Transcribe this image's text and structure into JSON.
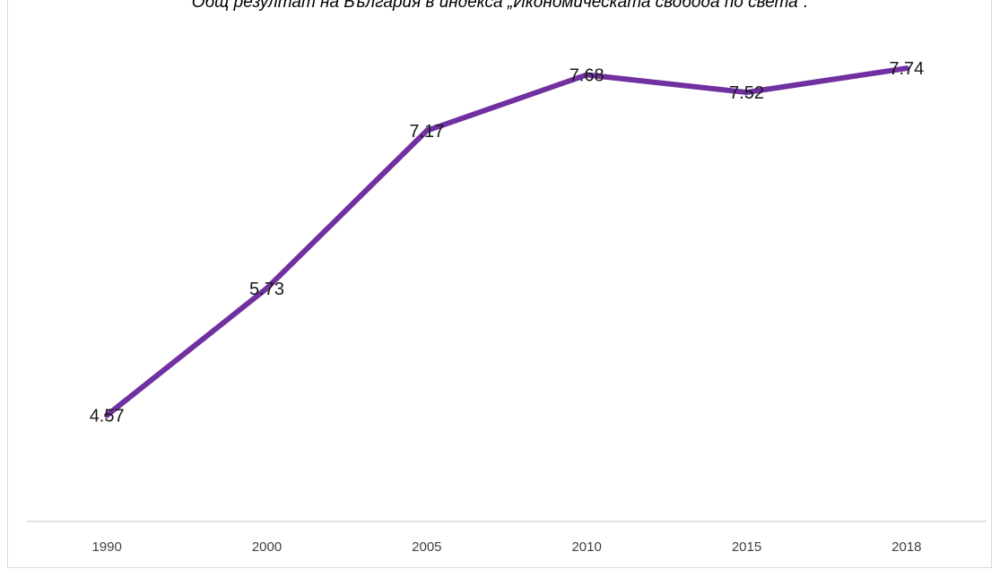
{
  "chart_data": {
    "type": "line",
    "title": "Общ резултат на България в индекса „Икономическата свобода по света“.",
    "xlabel": "",
    "ylabel": "",
    "categories": [
      "1990",
      "2000",
      "2005",
      "2010",
      "2015",
      "2018"
    ],
    "series": [
      {
        "values": [
          4.57,
          5.73,
          7.17,
          7.68,
          7.52,
          7.74
        ],
        "labels": [
          "4.57",
          "5.73",
          "7.17",
          "7.68",
          "7.52",
          "7.74"
        ],
        "color": "#7030a0"
      }
    ],
    "ylim": [
      3.6,
      8.2
    ],
    "grid": false,
    "legend": "none",
    "colors": {
      "line": "#7030a0",
      "axis": "#d9d9d9",
      "tick_text": "#404040"
    }
  }
}
